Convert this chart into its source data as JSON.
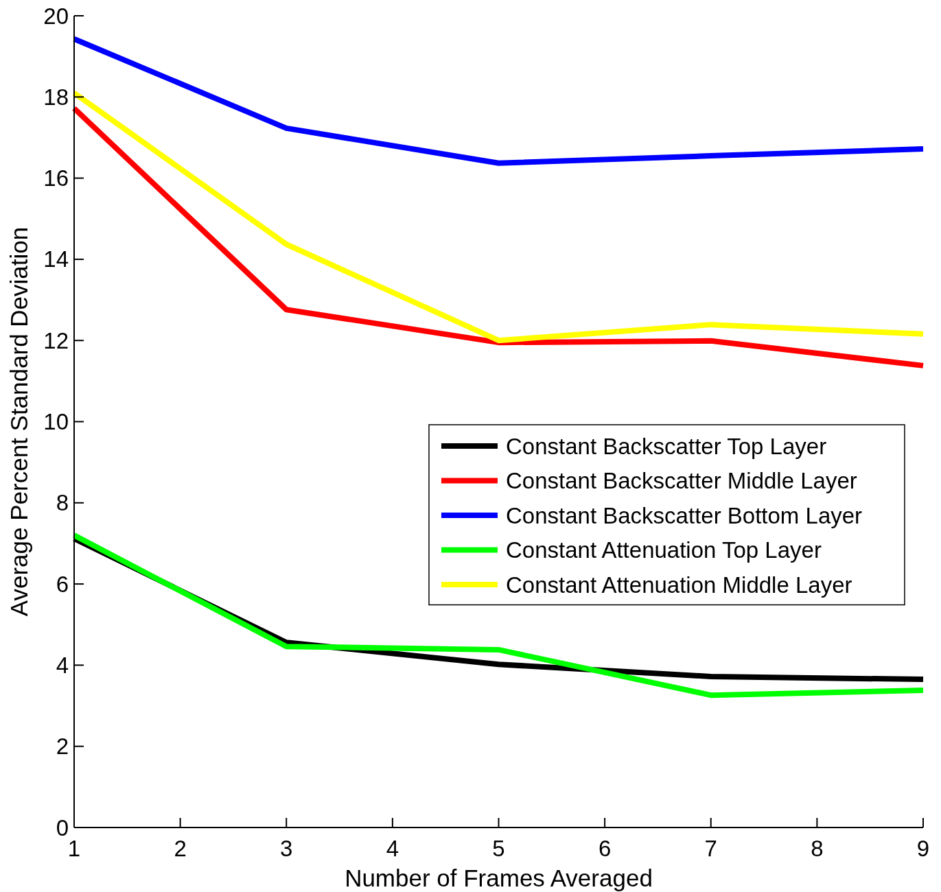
{
  "chart_data": {
    "type": "line",
    "xlabel": "Number of Frames Averaged",
    "ylabel": "Average Percent Standard Deviation",
    "x": [
      1,
      3,
      5,
      7,
      9
    ],
    "series": [
      {
        "name": "Constant Backscatter Top Layer",
        "color": "#000000",
        "values": [
          7.12,
          4.56,
          4.02,
          3.72,
          3.65
        ]
      },
      {
        "name": "Constant Backscatter Middle Layer",
        "color": "#ff0000",
        "values": [
          17.72,
          12.76,
          11.95,
          11.99,
          11.38
        ]
      },
      {
        "name": "Constant Backscatter Bottom Layer",
        "color": "#0000ff",
        "values": [
          19.43,
          17.23,
          16.37,
          16.55,
          16.72
        ]
      },
      {
        "name": "Constant Attenuation Top Layer",
        "color": "#00ff00",
        "values": [
          7.2,
          4.46,
          4.38,
          3.26,
          3.38
        ]
      },
      {
        "name": "Constant Attenuation Middle Layer",
        "color": "#ffff00",
        "values": [
          18.1,
          14.37,
          12.0,
          12.39,
          12.16
        ]
      }
    ],
    "xlim": [
      1,
      9
    ],
    "xticks": [
      1,
      2,
      3,
      4,
      5,
      6,
      7,
      8,
      9
    ],
    "ylim": [
      0,
      20
    ],
    "yticks": [
      0,
      2,
      4,
      6,
      8,
      10,
      12,
      14,
      16,
      18,
      20
    ],
    "grid": false,
    "legend": "right",
    "marker": "none",
    "line_style": "solid"
  }
}
